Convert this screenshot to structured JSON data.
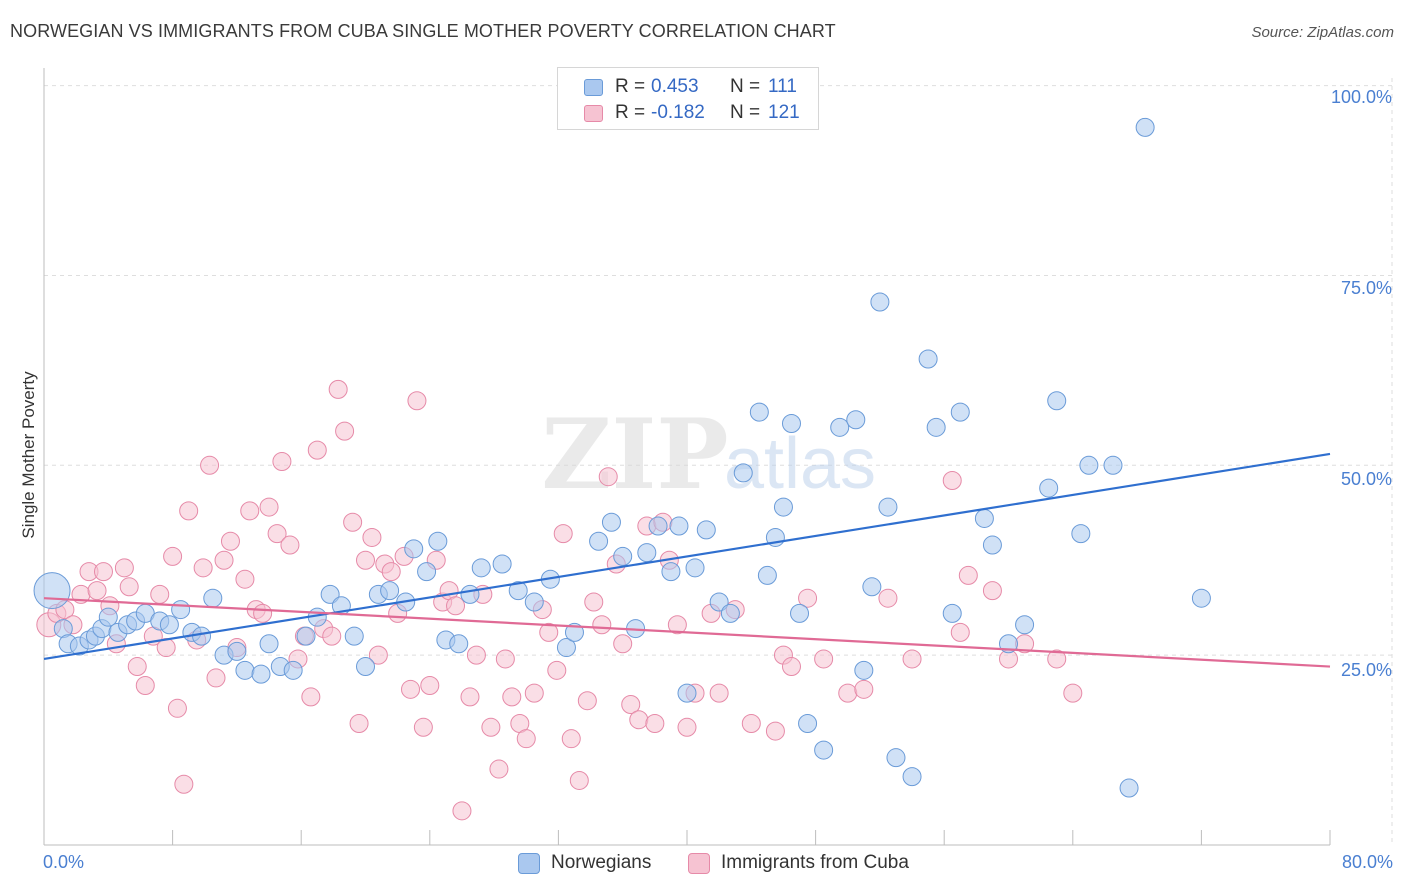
{
  "title": "NORWEGIAN VS IMMIGRANTS FROM CUBA SINGLE MOTHER POVERTY CORRELATION CHART",
  "source": "Source: ZipAtlas.com",
  "watermark": {
    "zip": "ZIP",
    "atlas": "atlas"
  },
  "stats": {
    "norwegians": {
      "r_label": "R =",
      "r_value": "0.453",
      "n_label": "N =",
      "n_value": "111"
    },
    "cuba": {
      "r_label": "R =",
      "r_value": "-0.182",
      "n_label": "N =",
      "n_value": "121"
    }
  },
  "legend": {
    "norwegians": "Norwegians",
    "cuba": "Immigrants from Cuba"
  },
  "colors": {
    "blue_fill": "#aac8ef",
    "blue_stroke": "#6a9bd8",
    "blue_line": "#2f6fcf",
    "pink_fill": "#f6c3d2",
    "pink_stroke": "#e68aa8",
    "pink_line": "#e06a95",
    "tick_text": "#4a7fd1",
    "grid": "#dedede"
  },
  "chart_data": {
    "type": "scatter",
    "title": "NORWEGIAN VS IMMIGRANTS FROM CUBA SINGLE MOTHER POVERTY CORRELATION CHART",
    "xlabel": "",
    "ylabel": "Single Mother Poverty",
    "xlim": [
      0,
      80
    ],
    "ylim": [
      0,
      101
    ],
    "x_tick_labels": [
      "0.0%",
      "80.0%"
    ],
    "y_ticks": [
      25,
      50,
      75,
      100
    ],
    "y_tick_labels": [
      "25.0%",
      "50.0%",
      "75.0%",
      "100.0%"
    ],
    "grid": true,
    "series": [
      {
        "name": "Norwegians",
        "r": 0.453,
        "n": 111,
        "trend": {
          "x": [
            0,
            80
          ],
          "y": [
            24.5,
            51.5
          ]
        },
        "points": [
          [
            0.5,
            33.5
          ],
          [
            1.2,
            28.5
          ],
          [
            1.5,
            26.5
          ],
          [
            2.2,
            26.2
          ],
          [
            2.8,
            27
          ],
          [
            3.2,
            27.5
          ],
          [
            3.6,
            28.5
          ],
          [
            4.0,
            30
          ],
          [
            4.6,
            28
          ],
          [
            5.2,
            29
          ],
          [
            5.7,
            29.5
          ],
          [
            6.3,
            30.5
          ],
          [
            7.2,
            29.5
          ],
          [
            7.8,
            29
          ],
          [
            8.5,
            31
          ],
          [
            9.2,
            28
          ],
          [
            9.8,
            27.5
          ],
          [
            10.5,
            32.5
          ],
          [
            11.2,
            25
          ],
          [
            12.0,
            25.5
          ],
          [
            12.5,
            23
          ],
          [
            13.5,
            22.5
          ],
          [
            14.0,
            26.5
          ],
          [
            14.7,
            23.5
          ],
          [
            15.5,
            23
          ],
          [
            16.3,
            27.5
          ],
          [
            17.0,
            30
          ],
          [
            17.8,
            33
          ],
          [
            18.5,
            31.5
          ],
          [
            19.3,
            27.5
          ],
          [
            20.0,
            23.5
          ],
          [
            20.8,
            33
          ],
          [
            21.5,
            33.5
          ],
          [
            22.5,
            32
          ],
          [
            23.0,
            39
          ],
          [
            23.8,
            36
          ],
          [
            24.5,
            40
          ],
          [
            25.0,
            27
          ],
          [
            25.8,
            26.5
          ],
          [
            26.5,
            33
          ],
          [
            27.2,
            36.5
          ],
          [
            28.5,
            37
          ],
          [
            29.5,
            33.5
          ],
          [
            30.5,
            32
          ],
          [
            31.5,
            35
          ],
          [
            32.5,
            26
          ],
          [
            33.0,
            28
          ],
          [
            34.5,
            40
          ],
          [
            35.3,
            42.5
          ],
          [
            36.0,
            38
          ],
          [
            36.8,
            28.5
          ],
          [
            37.5,
            38.5
          ],
          [
            38.2,
            42
          ],
          [
            39.0,
            36
          ],
          [
            39.5,
            42
          ],
          [
            40.0,
            20
          ],
          [
            40.5,
            36.5
          ],
          [
            41.2,
            41.5
          ],
          [
            42.0,
            32
          ],
          [
            42.7,
            30.5
          ],
          [
            43.5,
            49
          ],
          [
            44.5,
            57
          ],
          [
            45.0,
            35.5
          ],
          [
            45.5,
            40.5
          ],
          [
            46.0,
            44.5
          ],
          [
            46.5,
            55.5
          ],
          [
            47.0,
            30.5
          ],
          [
            47.5,
            16
          ],
          [
            48.5,
            12.5
          ],
          [
            49.5,
            55
          ],
          [
            50.5,
            56
          ],
          [
            51.0,
            23
          ],
          [
            51.5,
            34
          ],
          [
            52.0,
            71.5
          ],
          [
            52.5,
            44.5
          ],
          [
            53.0,
            11.5
          ],
          [
            54.0,
            9
          ],
          [
            55.0,
            64
          ],
          [
            55.5,
            55
          ],
          [
            56.5,
            30.5
          ],
          [
            57.0,
            57
          ],
          [
            58.5,
            43
          ],
          [
            59.0,
            39.5
          ],
          [
            60.0,
            26.5
          ],
          [
            61.0,
            29
          ],
          [
            62.5,
            47
          ],
          [
            63.0,
            58.5
          ],
          [
            64.5,
            41
          ],
          [
            65.0,
            50
          ],
          [
            66.5,
            50
          ],
          [
            67.5,
            7.5
          ],
          [
            68.5,
            94.5
          ],
          [
            72.0,
            32.5
          ]
        ]
      },
      {
        "name": "Immigrants from Cuba",
        "r": -0.182,
        "n": 121,
        "trend": {
          "x": [
            0,
            80
          ],
          "y": [
            32.5,
            23.5
          ]
        },
        "points": [
          [
            0.3,
            29
          ],
          [
            0.8,
            30.5
          ],
          [
            1.3,
            31
          ],
          [
            1.8,
            29
          ],
          [
            2.3,
            33
          ],
          [
            2.8,
            36
          ],
          [
            3.3,
            33.5
          ],
          [
            3.7,
            36
          ],
          [
            4.1,
            31.5
          ],
          [
            4.5,
            26.5
          ],
          [
            5.0,
            36.5
          ],
          [
            5.3,
            34
          ],
          [
            5.8,
            23.5
          ],
          [
            6.3,
            21
          ],
          [
            6.8,
            27.5
          ],
          [
            7.2,
            33
          ],
          [
            7.6,
            26
          ],
          [
            8.0,
            38
          ],
          [
            8.3,
            18
          ],
          [
            8.7,
            8
          ],
          [
            9.0,
            44
          ],
          [
            9.5,
            27
          ],
          [
            9.9,
            36.5
          ],
          [
            10.3,
            50
          ],
          [
            10.7,
            22
          ],
          [
            11.2,
            37.5
          ],
          [
            11.6,
            40
          ],
          [
            12.0,
            26
          ],
          [
            12.5,
            35
          ],
          [
            12.8,
            44
          ],
          [
            13.2,
            31
          ],
          [
            13.6,
            30.5
          ],
          [
            14.0,
            44.5
          ],
          [
            14.5,
            41
          ],
          [
            14.8,
            50.5
          ],
          [
            15.3,
            39.5
          ],
          [
            15.8,
            24.5
          ],
          [
            16.2,
            27.5
          ],
          [
            16.6,
            19.5
          ],
          [
            17.0,
            52
          ],
          [
            17.4,
            28.5
          ],
          [
            17.9,
            27.5
          ],
          [
            18.3,
            60
          ],
          [
            18.7,
            54.5
          ],
          [
            19.2,
            42.5
          ],
          [
            19.6,
            16
          ],
          [
            20.0,
            37.5
          ],
          [
            20.4,
            40.5
          ],
          [
            20.8,
            25
          ],
          [
            21.2,
            37
          ],
          [
            21.6,
            36
          ],
          [
            22.0,
            30.5
          ],
          [
            22.4,
            38
          ],
          [
            22.8,
            20.5
          ],
          [
            23.2,
            58.5
          ],
          [
            23.6,
            15.5
          ],
          [
            24.0,
            21
          ],
          [
            24.4,
            37.5
          ],
          [
            24.8,
            32
          ],
          [
            25.2,
            33.5
          ],
          [
            25.6,
            31.5
          ],
          [
            26.0,
            4.5
          ],
          [
            26.5,
            19.5
          ],
          [
            26.9,
            25
          ],
          [
            27.3,
            33
          ],
          [
            27.8,
            15.5
          ],
          [
            28.3,
            10
          ],
          [
            28.7,
            24.5
          ],
          [
            29.1,
            19.5
          ],
          [
            29.6,
            16
          ],
          [
            30.0,
            14
          ],
          [
            30.5,
            20
          ],
          [
            31.0,
            31
          ],
          [
            31.4,
            28
          ],
          [
            31.9,
            23
          ],
          [
            32.3,
            41
          ],
          [
            32.8,
            14
          ],
          [
            33.3,
            8.5
          ],
          [
            33.8,
            19
          ],
          [
            34.2,
            32
          ],
          [
            34.7,
            29
          ],
          [
            35.1,
            48.5
          ],
          [
            35.6,
            37
          ],
          [
            36.0,
            26.5
          ],
          [
            36.5,
            18.5
          ],
          [
            37.0,
            16.5
          ],
          [
            37.5,
            42
          ],
          [
            38.0,
            16
          ],
          [
            38.5,
            42.5
          ],
          [
            38.9,
            37.5
          ],
          [
            39.4,
            29
          ],
          [
            40.0,
            15.5
          ],
          [
            40.5,
            20
          ],
          [
            41.5,
            30.5
          ],
          [
            42.0,
            20
          ],
          [
            43.0,
            31
          ],
          [
            44.0,
            16
          ],
          [
            45.5,
            15
          ],
          [
            46.0,
            25
          ],
          [
            46.5,
            23.5
          ],
          [
            47.5,
            32.5
          ],
          [
            48.5,
            24.5
          ],
          [
            50.0,
            20
          ],
          [
            51.0,
            20.5
          ],
          [
            52.5,
            32.5
          ],
          [
            54.0,
            24.5
          ],
          [
            56.5,
            48
          ],
          [
            57.0,
            28
          ],
          [
            57.5,
            35.5
          ],
          [
            59.0,
            33.5
          ],
          [
            60.0,
            24.5
          ],
          [
            61.0,
            26.5
          ],
          [
            63.0,
            24.5
          ],
          [
            64.0,
            20
          ]
        ]
      }
    ]
  }
}
